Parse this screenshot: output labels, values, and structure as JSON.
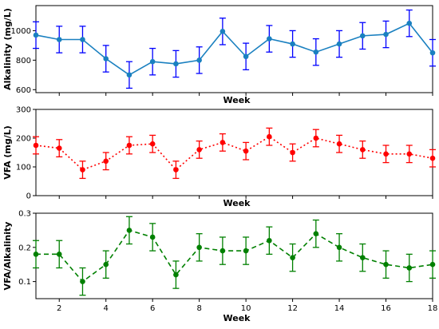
{
  "chart_data": [
    {
      "type": "line",
      "ylabel": "Alkalinity (mg/L)",
      "xlabel": "Week",
      "xlim": [
        1,
        18
      ],
      "ylim": [
        580,
        1170
      ],
      "yticks": [
        600,
        800,
        1000
      ],
      "xticks": [
        2,
        4,
        6,
        8,
        10,
        12,
        14,
        16,
        18
      ],
      "show_xtick_labels": false,
      "line_color": "#1a80c0",
      "error_color": "#0000ff",
      "line_style": "solid",
      "series": [
        {
          "x": [
            1,
            2,
            3,
            4,
            5,
            6,
            7,
            8,
            9,
            10,
            11,
            12,
            13,
            14,
            15,
            16,
            17,
            18
          ],
          "values": [
            970,
            940,
            940,
            810,
            700,
            790,
            775,
            800,
            995,
            825,
            945,
            910,
            855,
            910,
            965,
            975,
            1050,
            850
          ],
          "error": [
            90,
            90,
            90,
            90,
            90,
            90,
            90,
            90,
            90,
            90,
            90,
            90,
            90,
            90,
            90,
            90,
            90,
            90
          ]
        }
      ]
    },
    {
      "type": "line",
      "ylabel": "VFA (mg/L)",
      "xlabel": "Week",
      "xlim": [
        1,
        18
      ],
      "ylim": [
        0,
        300
      ],
      "yticks": [
        0,
        100,
        200,
        300
      ],
      "xticks": [
        2,
        4,
        6,
        8,
        10,
        12,
        14,
        16,
        18
      ],
      "show_xtick_labels": false,
      "line_color": "#ff0000",
      "error_color": "#ff0000",
      "line_style": "dotted",
      "series": [
        {
          "x": [
            1,
            2,
            3,
            4,
            5,
            6,
            7,
            8,
            9,
            10,
            11,
            12,
            13,
            14,
            15,
            16,
            17,
            18
          ],
          "values": [
            175,
            165,
            90,
            120,
            175,
            180,
            90,
            160,
            185,
            155,
            205,
            150,
            200,
            180,
            160,
            145,
            145,
            130
          ],
          "error": [
            30,
            30,
            30,
            30,
            30,
            30,
            30,
            30,
            30,
            30,
            30,
            30,
            30,
            30,
            30,
            30,
            30,
            30
          ]
        }
      ]
    },
    {
      "type": "line",
      "ylabel": "VFA/Alkalinity",
      "xlabel": "Week",
      "xlim": [
        1,
        18
      ],
      "ylim": [
        0.05,
        0.3
      ],
      "yticks": [
        0.1,
        0.2,
        0.3
      ],
      "xticks": [
        2,
        4,
        6,
        8,
        10,
        12,
        14,
        16,
        18
      ],
      "show_xtick_labels": true,
      "line_color": "#008000",
      "error_color": "#008000",
      "line_style": "dashed",
      "series": [
        {
          "x": [
            1,
            2,
            3,
            4,
            5,
            6,
            7,
            8,
            9,
            10,
            11,
            12,
            13,
            14,
            15,
            16,
            17,
            18
          ],
          "values": [
            0.18,
            0.18,
            0.1,
            0.15,
            0.25,
            0.23,
            0.12,
            0.2,
            0.19,
            0.19,
            0.22,
            0.17,
            0.24,
            0.2,
            0.17,
            0.15,
            0.14,
            0.15
          ],
          "error": [
            0.04,
            0.04,
            0.04,
            0.04,
            0.04,
            0.04,
            0.04,
            0.04,
            0.04,
            0.04,
            0.04,
            0.04,
            0.04,
            0.04,
            0.04,
            0.04,
            0.04,
            0.04
          ]
        }
      ]
    }
  ]
}
